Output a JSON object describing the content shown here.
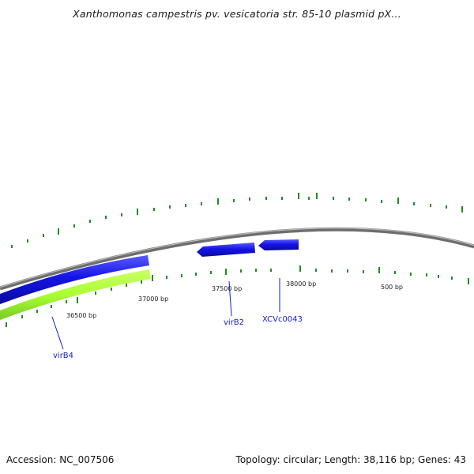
{
  "title": "Xanthomonas campestris pv. vesicatoria str. 85-10 plasmid pX...",
  "accession": "Accession: NC_007506",
  "summary": "Topology: circular; Length: 38,116 bp; Genes: 43",
  "ticks": [
    "36500 bp",
    "37000 bp",
    "37500 bp",
    "38000 bp",
    "500 bp"
  ],
  "genes": [
    "virB4",
    "virB2",
    "XCVc0043"
  ],
  "colors": {
    "backbone": "#8c8c8c",
    "gene_forward": "#1414e6",
    "gene_highlight": "#aaff33",
    "tick": "#228b22",
    "label": "#1a1ac8"
  }
}
